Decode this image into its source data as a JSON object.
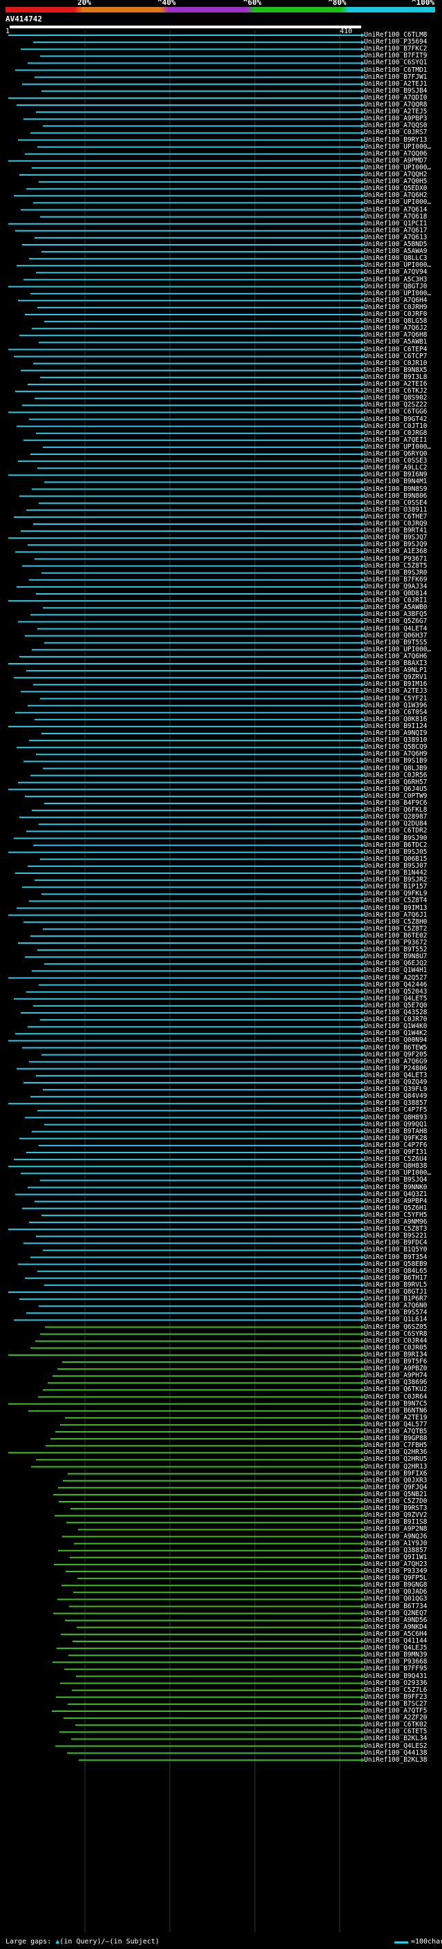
{
  "scale": {
    "ticks": [
      "20%",
      "^40%",
      "^60%",
      "^80%",
      "^100%"
    ],
    "colors": [
      "#e01818",
      "#e07818",
      "#a030c8",
      "#18c018",
      "#18c8e0"
    ]
  },
  "query": {
    "id": "AV414742",
    "start": "1",
    "end": "410"
  },
  "legend": {
    "large_gaps_label": "Large gaps:",
    "query_gap_label": "(in Query)/–(in Subject)",
    "scale_label": "=100char."
  },
  "colors": {
    "cyan": "#29c9e6",
    "green": "#3fbf1f"
  },
  "hits": [
    "UniRef100_C6TLM8",
    "UniRef100_P35694",
    "UniRef100_B7FKC2",
    "UniRef100_B7FIT9",
    "UniRef100_C6SYQ1",
    "UniRef100_C6TMD1",
    "UniRef100_B7FJW1",
    "UniRef100_A2TEJ1",
    "UniRef100_B9SJB4",
    "UniRef100_A7QDI0",
    "UniRef100_A7QQR8",
    "UniRef100_A2TEJ5",
    "UniRef100_A9PBP3",
    "UniRef100_A7QQS0",
    "UniRef100_C0JRS7",
    "UniRef100_B9RY13",
    "UniRef100_UPI000…",
    "UniRef100_A7QQ06",
    "UniRef100_A9PMD7",
    "UniRef100_UPI000…",
    "UniRef100_A7QQH2",
    "UniRef100_A7Q0H5",
    "UniRef100_Q5EDX0",
    "UniRef100_A7Q6H2",
    "UniRef100_UPI000…",
    "UniRef100_A7Q614",
    "UniRef100_A7Q618",
    "UniRef100_Q1PCI1",
    "UniRef100_A7Q617",
    "UniRef100_A7Q613",
    "UniRef100_A5BND5",
    "UniRef100_A5AWA9",
    "UniRef100_Q8LLC3",
    "UniRef100_UPI000…",
    "UniRef100_A7QV94",
    "UniRef100_A5C3H3",
    "UniRef100_Q8GTJ0",
    "UniRef100_UPI000…",
    "UniRef100_A7Q6H4",
    "UniRef100_C0JRH9",
    "UniRef100_C0JRF0",
    "UniRef100_Q8LG58",
    "UniRef100_A7Q6J2",
    "UniRef100_A7Q6H8",
    "UniRef100_A5AWB1",
    "UniRef100_C6TEP4",
    "UniRef100_C6TCP7",
    "UniRef100_C0JR10",
    "UniRef100_B9N8X5",
    "UniRef100_B9I3L8",
    "UniRef100_A2TEI6",
    "UniRef100_C6TKJ2",
    "UniRef100_Q8S902",
    "UniRef100_Q2SZ22",
    "UniRef100_C6TGG6",
    "UniRef100_B9GT42",
    "UniRef100_C0JT10",
    "UniRef100_C0JRG8",
    "UniRef100_A7QEI1",
    "UniRef100_UPI000…",
    "UniRef100_Q6RYQ0",
    "UniRef100_C0SSE3",
    "UniRef100_A9LLC2",
    "UniRef100_B9I6N9",
    "UniRef100_B9N4M1",
    "UniRef100_B9N8S9",
    "UniRef100_B9N806",
    "UniRef100_C0SSE4",
    "UniRef100_O38911",
    "UniRef100_C6THE7",
    "UniRef100_C0JRQ9",
    "UniRef100_B9RT41",
    "UniRef100_B9SJQ7",
    "UniRef100_B9SJQ9",
    "UniRef100_A1E368",
    "UniRef100_P93671",
    "UniRef100_C5Z8T5",
    "UniRef100_B9SJR0",
    "UniRef100_B7FK69",
    "UniRef100_Q9AJ34",
    "UniRef100_Q0D814",
    "UniRef100_C0JRI1",
    "UniRef100_A5AWB0",
    "UniRef100_A3BFQ5",
    "UniRef100_Q5Z6G7",
    "UniRef100_Q4LET4",
    "UniRef100_Q06H37",
    "UniRef100_B9T5S5",
    "UniRef100_UPI000…",
    "UniRef100_A7Q6H6",
    "UniRef100_B8AXI3",
    "UniRef100_A9NLP1",
    "UniRef100_Q9ZRV1",
    "UniRef100_B9IM16",
    "UniRef100_A2TEJ3",
    "UniRef100_C5YF21",
    "UniRef100_Q1W396",
    "UniRef100_C6T0S4",
    "UniRef100_Q0K816",
    "UniRef100_B9I124",
    "UniRef100_A9NQI9",
    "UniRef100_Q38910",
    "UniRef100_Q5BCQ9",
    "UniRef100_A7Q6H9",
    "UniRef100_B9S1B9",
    "UniRef100_Q8LJB9",
    "UniRef100_C0JR56",
    "UniRef100_Q6RH57",
    "UniRef100_Q6J4U5",
    "UniRef100_C0PTW9",
    "UniRef100_B4F9C6",
    "UniRef100_Q6FKL8",
    "UniRef100_Q28987",
    "UniRef100_Q2DU84",
    "UniRef100_C6TDR2",
    "UniRef100_B9SJ90",
    "UniRef100_B6TDC2",
    "UniRef100_B9SJ05",
    "UniRef100_Q06B15",
    "UniRef100_B9SJ07",
    "UniRef100_B1N442",
    "UniRef100_B9SJR2",
    "UniRef100_B1P157",
    "UniRef100_Q9FKL9",
    "UniRef100_C5Z8T4",
    "UniRef100_B9IM13",
    "UniRef100_A7Q6J1",
    "UniRef100_C5Z8H0",
    "UniRef100_C5Z8T2",
    "UniRef100_B6TE02",
    "UniRef100_P93672",
    "UniRef100_B9T552",
    "UniRef100_B9N8U7",
    "UniRef100_Q6EJQ2",
    "UniRef100_Q1W4H1",
    "UniRef100_A2Q527",
    "UniRef100_Q42446",
    "UniRef100_Q52043",
    "UniRef100_Q4LET5",
    "UniRef100_Q5E7Q0",
    "UniRef100_Q43528",
    "UniRef100_C0JR70",
    "UniRef100_Q1W4K0",
    "UniRef100_Q1W4K2",
    "UniRef100_Q00N94",
    "UniRef100_B6TEW5",
    "UniRef100_Q9F205",
    "UniRef100_A7Q6G9",
    "UniRef100_P24806",
    "UniRef100_Q4LET3",
    "UniRef100_Q9ZQ49",
    "UniRef100_Q39FL9",
    "UniRef100_Q84V49",
    "UniRef100_Q38857",
    "UniRef100_C4P7F5",
    "UniRef100_Q8H893",
    "UniRef100_Q99QQ1",
    "UniRef100_B9TAH8",
    "UniRef100_Q9FK28",
    "UniRef100_C4P7F6",
    "UniRef100_Q9FI31",
    "UniRef100_C5Z6U4",
    "UniRef100_Q8H838",
    "UniRef100_UPI000…",
    "UniRef100_B9SJQ4",
    "UniRef100_B9NNK0",
    "UniRef100_Q4Q3Z1",
    "UniRef100_A9PBP4",
    "UniRef100_Q5Z6H1",
    "UniRef100_C5YFH5",
    "UniRef100_A9NM96",
    "UniRef100_C5Z8T3",
    "UniRef100_B9S221",
    "UniRef100_B9FDC4",
    "UniRef100_B1Q5Y0",
    "UniRef100_B9T354",
    "UniRef100_Q58EB9",
    "UniRef100_Q84L65",
    "UniRef100_B6TH17",
    "UniRef100_B9RVL5",
    "UniRef100_Q8GTJ1",
    "UniRef100_B1P6R7",
    "UniRef100_A7Q6N0",
    "UniRef100_B9S574",
    "UniRef100_Q1L614",
    "UniRef100_Q6SZ05",
    "UniRef100_C6SYR8",
    "UniRef100_C0JR44",
    "UniRef100_C0JR05",
    "UniRef100_B9RI34",
    "UniRef100_B9T5F6",
    "UniRef100_A9PBZ0",
    "UniRef100_A9PH74",
    "UniRef100_Q38696",
    "UniRef100_Q6TKU2",
    "UniRef100_C0JR64",
    "UniRef100_B9N7C5",
    "UniRef100_B6NTN6",
    "UniRef100_A2TE19",
    "UniRef100_Q4L577",
    "UniRef100_A7QTB5",
    "UniRef100_B9GP88",
    "UniRef100_C7FBH5",
    "UniRef100_Q2HR36",
    "UniRef100_Q2HRU5",
    "UniRef100_Q2HR13",
    "UniRef100_B9FIX6",
    "UniRef100_Q0JXR3",
    "UniRef100_Q9FJQ4",
    "UniRef100_Q5NB21",
    "UniRef100_C5Z7D0",
    "UniRef100_B9RST3",
    "UniRef100_Q9ZVV2",
    "UniRef100_B9I1S8",
    "UniRef100_A9P2N8",
    "UniRef100_A9NQJ6",
    "UniRef100_A1Y9J0",
    "UniRef100_Q38857",
    "UniRef100_Q9I1W1",
    "UniRef100_A7QH23",
    "UniRef100_P93349",
    "UniRef100_Q9FP5L",
    "UniRef100_B9GNG8",
    "UniRef100_Q0JAD6",
    "UniRef100_Q01QG3",
    "UniRef100_B6T734",
    "UniRef100_Q2NEQ7",
    "UniRef100_A9ND56",
    "UniRef100_A9NKD4",
    "UniRef100_A5C6H4",
    "UniRef100_Q41144",
    "UniRef100_Q4LEJ5",
    "UniRef100_B9MN39",
    "UniRef100_P93668",
    "UniRef100_B7FF95",
    "UniRef100_B9Q431",
    "UniRef100_O29336",
    "UniRef100_C5Z7L6",
    "UniRef100_B9FF23",
    "UniRef100_B7SC27",
    "UniRef100_A7QTF5",
    "UniRef100_A2ZF20",
    "UniRef100_C6TK02",
    "UniRef100_C6TET5",
    "UniRef100_B2KL34",
    "UniRef100_Q4LES2",
    "UniRef100_Q44138",
    "UniRef100_B2KL38"
  ]
}
